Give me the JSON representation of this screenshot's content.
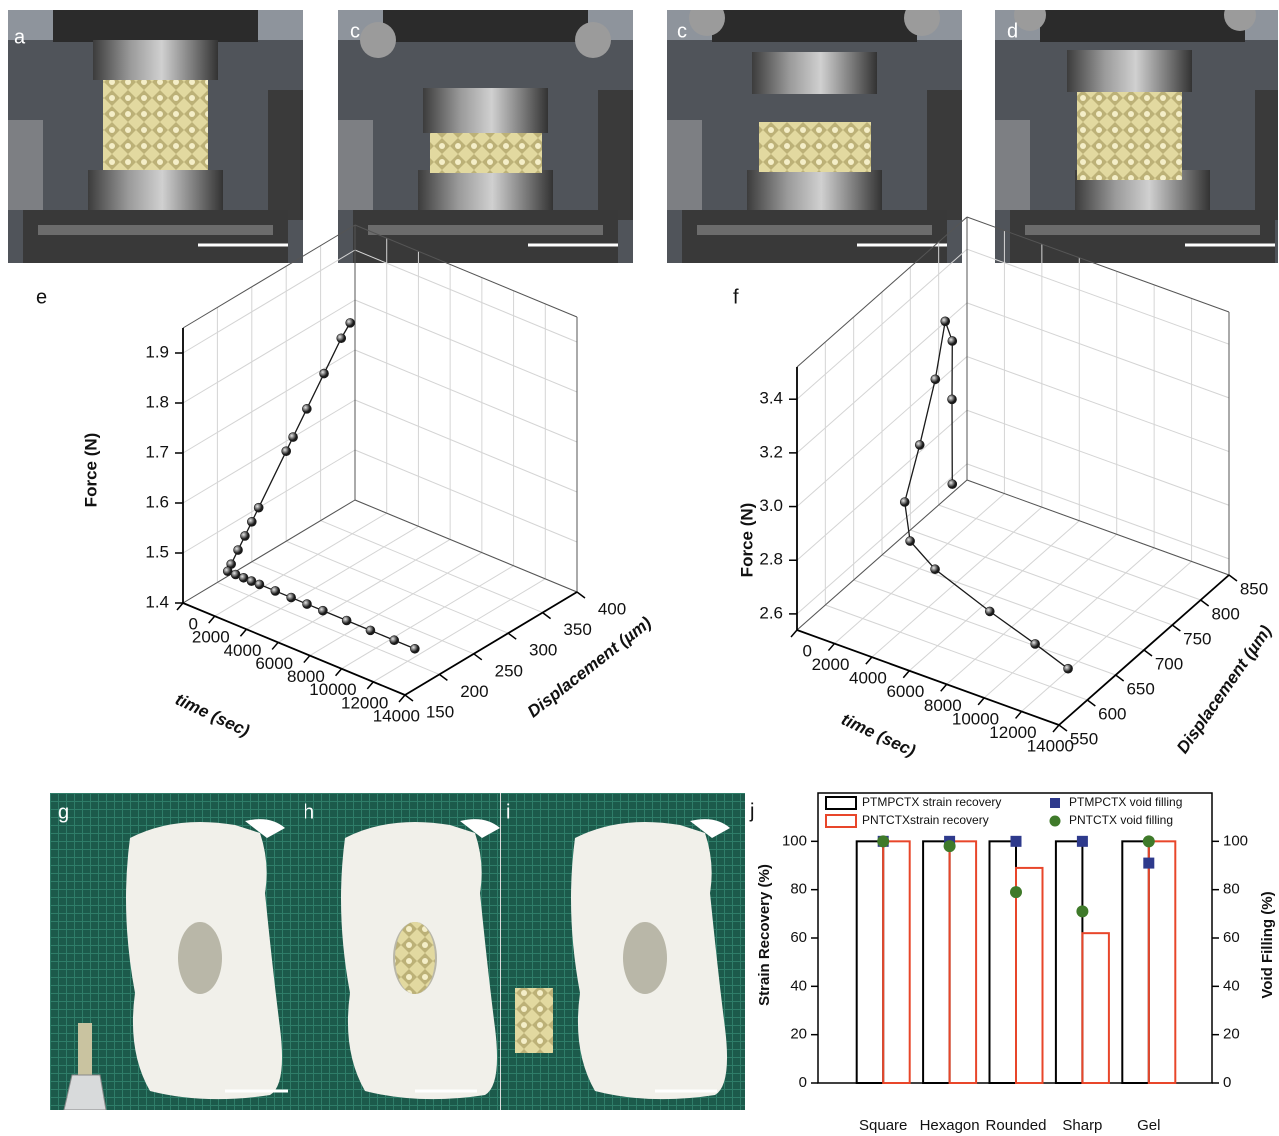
{
  "photos": {
    "top": [
      "a",
      "c",
      "c",
      "d"
    ],
    "bottom": [
      "g",
      "h",
      "i"
    ]
  },
  "chart_data": [
    {
      "type": "scatter3d",
      "panel": "e",
      "x_label": "time (sec)",
      "y_label": "Displacement (µm)",
      "z_label": "Force (N)",
      "xlim": [
        0,
        14000
      ],
      "xticks": [
        0,
        2000,
        4000,
        6000,
        8000,
        10000,
        12000,
        14000
      ],
      "ylim": [
        150,
        400
      ],
      "yticks": [
        150,
        200,
        250,
        300,
        350,
        400
      ],
      "zlim": [
        1.4,
        1.95
      ],
      "zticks": [
        1.4,
        1.5,
        1.6,
        1.7,
        1.8,
        1.9
      ],
      "color": "#1a1a1a",
      "grid": true,
      "x": [
        0,
        0,
        0,
        0,
        0,
        0,
        0,
        0,
        0,
        0,
        0,
        0,
        500,
        1000,
        1500,
        2000,
        3000,
        4000,
        5000,
        6000,
        7500,
        9000,
        10500,
        11800
      ],
      "y": [
        393,
        380,
        355,
        330,
        310,
        300,
        260,
        250,
        240,
        230,
        220,
        215,
        215,
        215,
        215,
        215,
        215,
        215,
        215,
        215,
        215,
        215,
        215,
        215
      ],
      "z": [
        1.76,
        1.74,
        1.69,
        1.64,
        1.6,
        1.58,
        1.5,
        1.48,
        1.46,
        1.44,
        1.42,
        1.41,
        1.41,
        1.41,
        1.41,
        1.41,
        1.41,
        1.41,
        1.41,
        1.41,
        1.41,
        1.41,
        1.41,
        1.41
      ]
    },
    {
      "type": "scatter3d",
      "panel": "f",
      "x_label": "time (sec)",
      "y_label": "Displacement (µm)",
      "z_label": "Force (N)",
      "xlim": [
        0,
        14000
      ],
      "xticks": [
        0,
        2000,
        4000,
        6000,
        8000,
        10000,
        12000,
        14000
      ],
      "ylim": [
        550,
        850
      ],
      "yticks": [
        550,
        600,
        650,
        700,
        750,
        800,
        850
      ],
      "zlim": [
        2.54,
        3.52
      ],
      "zticks": [
        2.6,
        2.8,
        {
          "value": 3,
          "label": "3.0"
        },
        3.2,
        3.4
      ],
      "color": "#1a1a1a",
      "grid": true,
      "x": [
        1000,
        1500,
        2000,
        2500,
        3000,
        3500,
        4000,
        4500,
        5500,
        8000,
        11000,
        14000
      ],
      "y": [
        791,
        774,
        758,
        729,
        695,
        651,
        608,
        601,
        612,
        626,
        607,
        566
      ],
      "z": [
        2.66,
        3.02,
        3.28,
        3.42,
        3.28,
        3.13,
        3.01,
        2.89,
        2.79,
        2.67,
        2.66,
        2.72
      ]
    },
    {
      "type": "bar",
      "panel": "j",
      "categories": [
        "Square",
        "Hexagon",
        "Rounded",
        "Sharp",
        "Gel"
      ],
      "y_label": "Strain Recovery (%)",
      "y2_label": "Void Filling (%)",
      "ylim": [
        0,
        120
      ],
      "yticks": [
        0,
        20,
        40,
        60,
        80,
        100
      ],
      "y2lim": [
        0,
        120
      ],
      "y2ticks": [
        0,
        20,
        40,
        60,
        80,
        100
      ],
      "series": [
        {
          "name": "PTMPCTX strain recovery",
          "color": "#000000",
          "values": [
            100,
            100,
            100,
            100,
            100
          ]
        },
        {
          "name": "PNTCTXstrain recovery",
          "color": "#e8462a",
          "values": [
            100,
            100,
            89,
            62,
            100
          ]
        },
        {
          "name": "PTMPCTX  void filling",
          "color": "#2e3a8c",
          "marker": "square",
          "axis": "y2",
          "values": [
            100,
            100,
            100,
            100,
            91
          ]
        },
        {
          "name": "PNTCTX void filling",
          "color": "#3f7a2a",
          "marker": "circle",
          "axis": "y2",
          "values": [
            100,
            98,
            79,
            71,
            100
          ]
        }
      ]
    }
  ]
}
